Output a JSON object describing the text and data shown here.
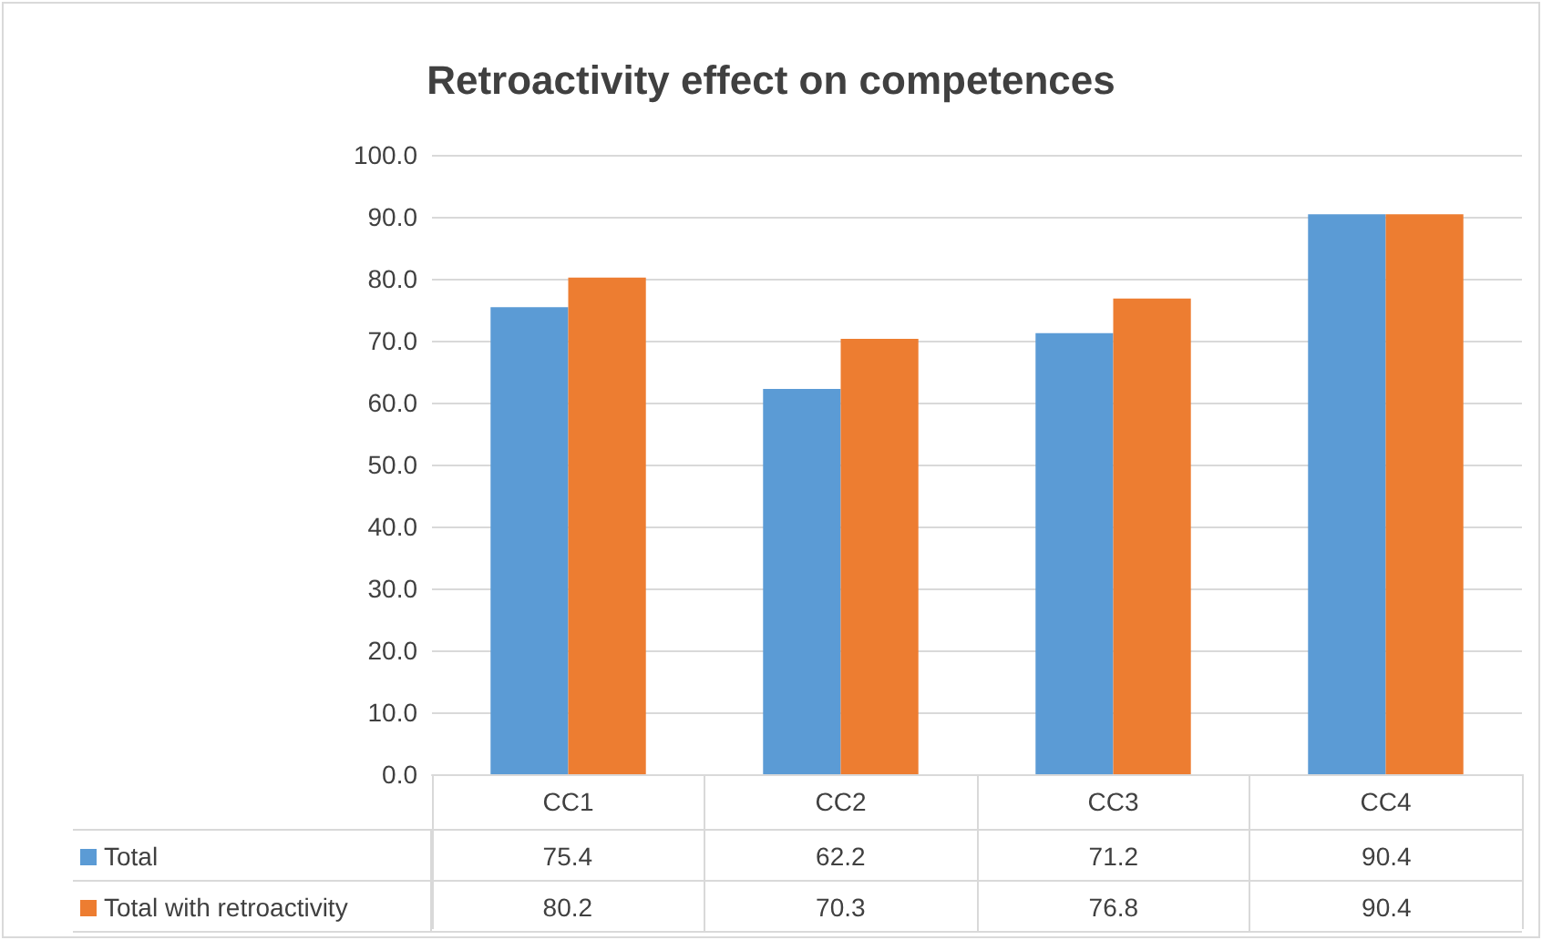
{
  "chart_data": {
    "type": "bar",
    "title": "Retroactivity effect on competences",
    "categories": [
      "CC1",
      "CC2",
      "CC3",
      "CC4"
    ],
    "series": [
      {
        "name": "Total",
        "color": "#5b9bd5",
        "values": [
          75.4,
          62.2,
          71.2,
          90.4
        ]
      },
      {
        "name": "Total with retroactivity",
        "color": "#ed7d31",
        "values": [
          80.2,
          70.3,
          76.8,
          90.4
        ]
      }
    ],
    "ylim": [
      0,
      100
    ],
    "yticks": [
      {
        "value": 0,
        "label": "0.0"
      },
      {
        "value": 10,
        "label": "10.0"
      },
      {
        "value": 20,
        "label": "20.0"
      },
      {
        "value": 30,
        "label": "30.0"
      },
      {
        "value": 40,
        "label": "40.0"
      },
      {
        "value": 50,
        "label": "50.0"
      },
      {
        "value": 60,
        "label": "60.0"
      },
      {
        "value": 70,
        "label": "70.0"
      },
      {
        "value": 80,
        "label": "80.0"
      },
      {
        "value": 90,
        "label": "90.0"
      },
      {
        "value": 100,
        "label": "100.0"
      }
    ],
    "grid": "y",
    "legend": "bottom",
    "data_labels": true
  }
}
